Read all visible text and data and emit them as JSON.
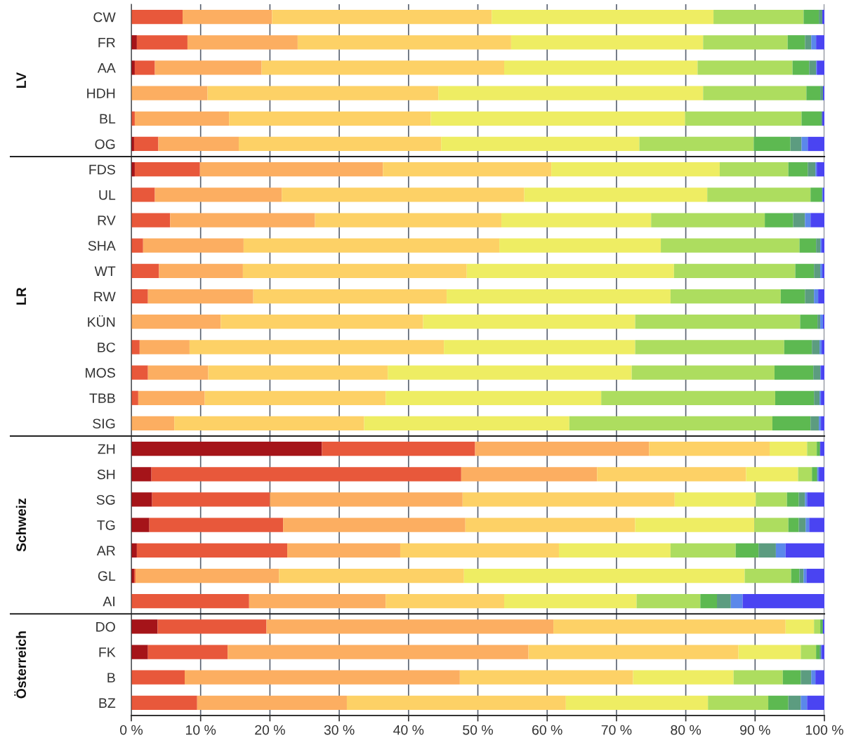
{
  "chart_data": [
    {
      "type": "bar",
      "orientation": "horizontal",
      "stacked": true,
      "ylabel": "LV",
      "categories": [
        "CW",
        "FR",
        "AA",
        "HDH",
        "BL",
        "OG"
      ],
      "xlim": [
        0,
        100
      ],
      "xticks": [
        0,
        10,
        20,
        30,
        40,
        50,
        60,
        70,
        80,
        90,
        100
      ],
      "grid": "x",
      "tick_labels": "y",
      "series": [
        {
          "color": "#a51419",
          "values": [
            0,
            0.8,
            0.5,
            0,
            0,
            0.4
          ]
        },
        {
          "color": "#e8583b",
          "values": [
            7.4,
            7.3,
            2.9,
            0,
            0.5,
            3.5
          ]
        },
        {
          "color": "#fcae61",
          "values": [
            12.9,
            15.9,
            15.4,
            11.0,
            13.6,
            11.6
          ]
        },
        {
          "color": "#fdd166",
          "values": [
            31.7,
            30.8,
            35.0,
            33.3,
            29.1,
            29.2
          ]
        },
        {
          "color": "#eeed63",
          "values": [
            32.0,
            27.7,
            27.9,
            38.2,
            36.7,
            28.6
          ]
        },
        {
          "color": "#addd5f",
          "values": [
            13.0,
            12.2,
            13.7,
            14.9,
            16.8,
            16.5
          ]
        },
        {
          "color": "#5db951",
          "values": [
            2.2,
            2.5,
            2.4,
            2.0,
            2.8,
            5.3
          ]
        },
        {
          "color": "#5c9c80",
          "values": [
            0.5,
            0.9,
            1.0,
            0.4,
            0.2,
            1.6
          ]
        },
        {
          "color": "#5b88ea",
          "values": [
            0,
            0.7,
            0.1,
            0,
            0,
            0.9
          ]
        },
        {
          "color": "#4a44f2",
          "values": [
            0.3,
            1.2,
            1.1,
            0.2,
            0.3,
            2.4
          ]
        }
      ]
    },
    {
      "type": "bar",
      "orientation": "horizontal",
      "stacked": true,
      "ylabel": "LR",
      "categories": [
        "FDS",
        "UL",
        "RV",
        "SHA",
        "WT",
        "RW",
        "KÜN",
        "BC",
        "MOS",
        "TBB",
        "SIG"
      ],
      "xlim": [
        0,
        100
      ],
      "xticks": [
        0,
        10,
        20,
        30,
        40,
        50,
        60,
        70,
        80,
        90,
        100
      ],
      "grid": "x",
      "tick_labels": "y",
      "series": [
        {
          "color": "#a51419",
          "values": [
            0.5,
            0,
            0,
            0,
            0,
            0,
            0,
            0,
            0,
            0,
            0
          ]
        },
        {
          "color": "#e8583b",
          "values": [
            9.4,
            3.4,
            5.6,
            1.7,
            4.0,
            2.4,
            0,
            1.2,
            2.4,
            1.0,
            0
          ]
        },
        {
          "color": "#fcae61",
          "values": [
            26.4,
            18.3,
            20.9,
            14.5,
            12.1,
            15.2,
            12.9,
            7.2,
            8.7,
            9.6,
            6.2
          ]
        },
        {
          "color": "#fdd166",
          "values": [
            24.3,
            35.0,
            26.9,
            36.9,
            32.3,
            27.9,
            29.2,
            36.7,
            25.9,
            26.1,
            27.4
          ]
        },
        {
          "color": "#eeed63",
          "values": [
            24.3,
            26.4,
            21.6,
            23.3,
            29.9,
            32.3,
            30.6,
            27.6,
            35.2,
            31.1,
            29.6
          ]
        },
        {
          "color": "#addd5f",
          "values": [
            9.9,
            14.9,
            16.4,
            20.0,
            17.5,
            15.9,
            23.8,
            21.5,
            20.6,
            25.1,
            29.3
          ]
        },
        {
          "color": "#5db951",
          "values": [
            2.8,
            1.6,
            4.1,
            2.4,
            2.7,
            3.5,
            2.5,
            4.0,
            5.6,
            5.6,
            5.5
          ]
        },
        {
          "color": "#5c9c80",
          "values": [
            1.1,
            0.1,
            1.7,
            0.6,
            0.9,
            1.3,
            0.4,
            1.1,
            1.0,
            0.8,
            1.2
          ]
        },
        {
          "color": "#5b88ea",
          "values": [
            0.2,
            0.1,
            0.8,
            0.2,
            0.3,
            0.6,
            0.4,
            0.3,
            0.1,
            0.2,
            0.3
          ]
        },
        {
          "color": "#4a44f2",
          "values": [
            1.1,
            0.2,
            2.0,
            0.4,
            0.3,
            0.9,
            0.2,
            0.4,
            0.5,
            0.5,
            0.5
          ]
        }
      ]
    },
    {
      "type": "bar",
      "orientation": "horizontal",
      "stacked": true,
      "ylabel": "Schweiz",
      "categories": [
        "ZH",
        "SH",
        "SG",
        "TG",
        "AR",
        "GL",
        "AI"
      ],
      "xlim": [
        0,
        100
      ],
      "xticks": [
        0,
        10,
        20,
        30,
        40,
        50,
        60,
        70,
        80,
        90,
        100
      ],
      "grid": "x",
      "tick_labels": "y",
      "series": [
        {
          "color": "#a51419",
          "values": [
            27.5,
            2.9,
            3.0,
            2.6,
            0.8,
            0.4,
            0
          ]
        },
        {
          "color": "#e8583b",
          "values": [
            22.1,
            44.7,
            17.0,
            19.3,
            21.7,
            0.2,
            17.0
          ]
        },
        {
          "color": "#fcae61",
          "values": [
            25.1,
            19.6,
            27.8,
            26.3,
            16.3,
            20.7,
            19.7
          ]
        },
        {
          "color": "#fdd166",
          "values": [
            17.4,
            21.5,
            30.6,
            24.5,
            22.9,
            26.7,
            17.1
          ]
        },
        {
          "color": "#eeed63",
          "values": [
            5.4,
            7.5,
            11.7,
            17.2,
            16.1,
            40.5,
            19.1
          ]
        },
        {
          "color": "#addd5f",
          "values": [
            1.4,
            2.0,
            4.5,
            4.9,
            9.4,
            6.7,
            9.2
          ]
        },
        {
          "color": "#5db951",
          "values": [
            0.4,
            0.7,
            1.7,
            1.5,
            3.3,
            1.2,
            2.4
          ]
        },
        {
          "color": "#5c9c80",
          "values": [
            0.1,
            0.1,
            0.9,
            1.0,
            2.5,
            0.6,
            2.0
          ]
        },
        {
          "color": "#5b88ea",
          "values": [
            0,
            0.2,
            0.3,
            0.5,
            1.4,
            0.4,
            1.7
          ]
        },
        {
          "color": "#4a44f2",
          "values": [
            0.6,
            0.8,
            2.5,
            2.2,
            5.6,
            2.6,
            11.8
          ]
        }
      ]
    },
    {
      "type": "bar",
      "orientation": "horizontal",
      "stacked": true,
      "ylabel": "Österreich",
      "categories": [
        "DO",
        "FK",
        "B",
        "BZ"
      ],
      "xlim": [
        0,
        100
      ],
      "xticks": [
        {
          "value": 0,
          "label": "0 %"
        },
        {
          "value": 10,
          "label": "10 %"
        },
        {
          "value": 20,
          "label": "20 %"
        },
        {
          "value": 30,
          "label": "30 %"
        },
        {
          "value": 40,
          "label": "40 %"
        },
        {
          "value": 50,
          "label": "50 %"
        },
        {
          "value": 60,
          "label": "60 %"
        },
        {
          "value": 70,
          "label": "70 %"
        },
        {
          "value": 80,
          "label": "80 %"
        },
        {
          "value": 90,
          "label": "90 %"
        },
        {
          "value": 100,
          "label": "100 %"
        }
      ],
      "grid": "x",
      "series": [
        {
          "color": "#a51419",
          "values": [
            3.8,
            2.4,
            0,
            0
          ]
        },
        {
          "color": "#e8583b",
          "values": [
            15.7,
            11.5,
            7.7,
            9.5
          ]
        },
        {
          "color": "#fcae61",
          "values": [
            41.4,
            43.4,
            39.7,
            21.6
          ]
        },
        {
          "color": "#fdd166",
          "values": [
            33.5,
            30.3,
            25.0,
            31.6
          ]
        },
        {
          "color": "#eeed63",
          "values": [
            4.1,
            9.0,
            14.5,
            20.5
          ]
        },
        {
          "color": "#addd5f",
          "values": [
            0.9,
            2.2,
            7.1,
            8.7
          ]
        },
        {
          "color": "#5db951",
          "values": [
            0.3,
            0.5,
            2.6,
            2.9
          ]
        },
        {
          "color": "#5c9c80",
          "values": [
            0.1,
            0.2,
            1.5,
            1.8
          ]
        },
        {
          "color": "#5b88ea",
          "values": [
            0,
            0.1,
            0.6,
            0.9
          ]
        },
        {
          "color": "#4a44f2",
          "values": [
            0.2,
            0.4,
            1.3,
            2.5
          ]
        }
      ]
    }
  ]
}
